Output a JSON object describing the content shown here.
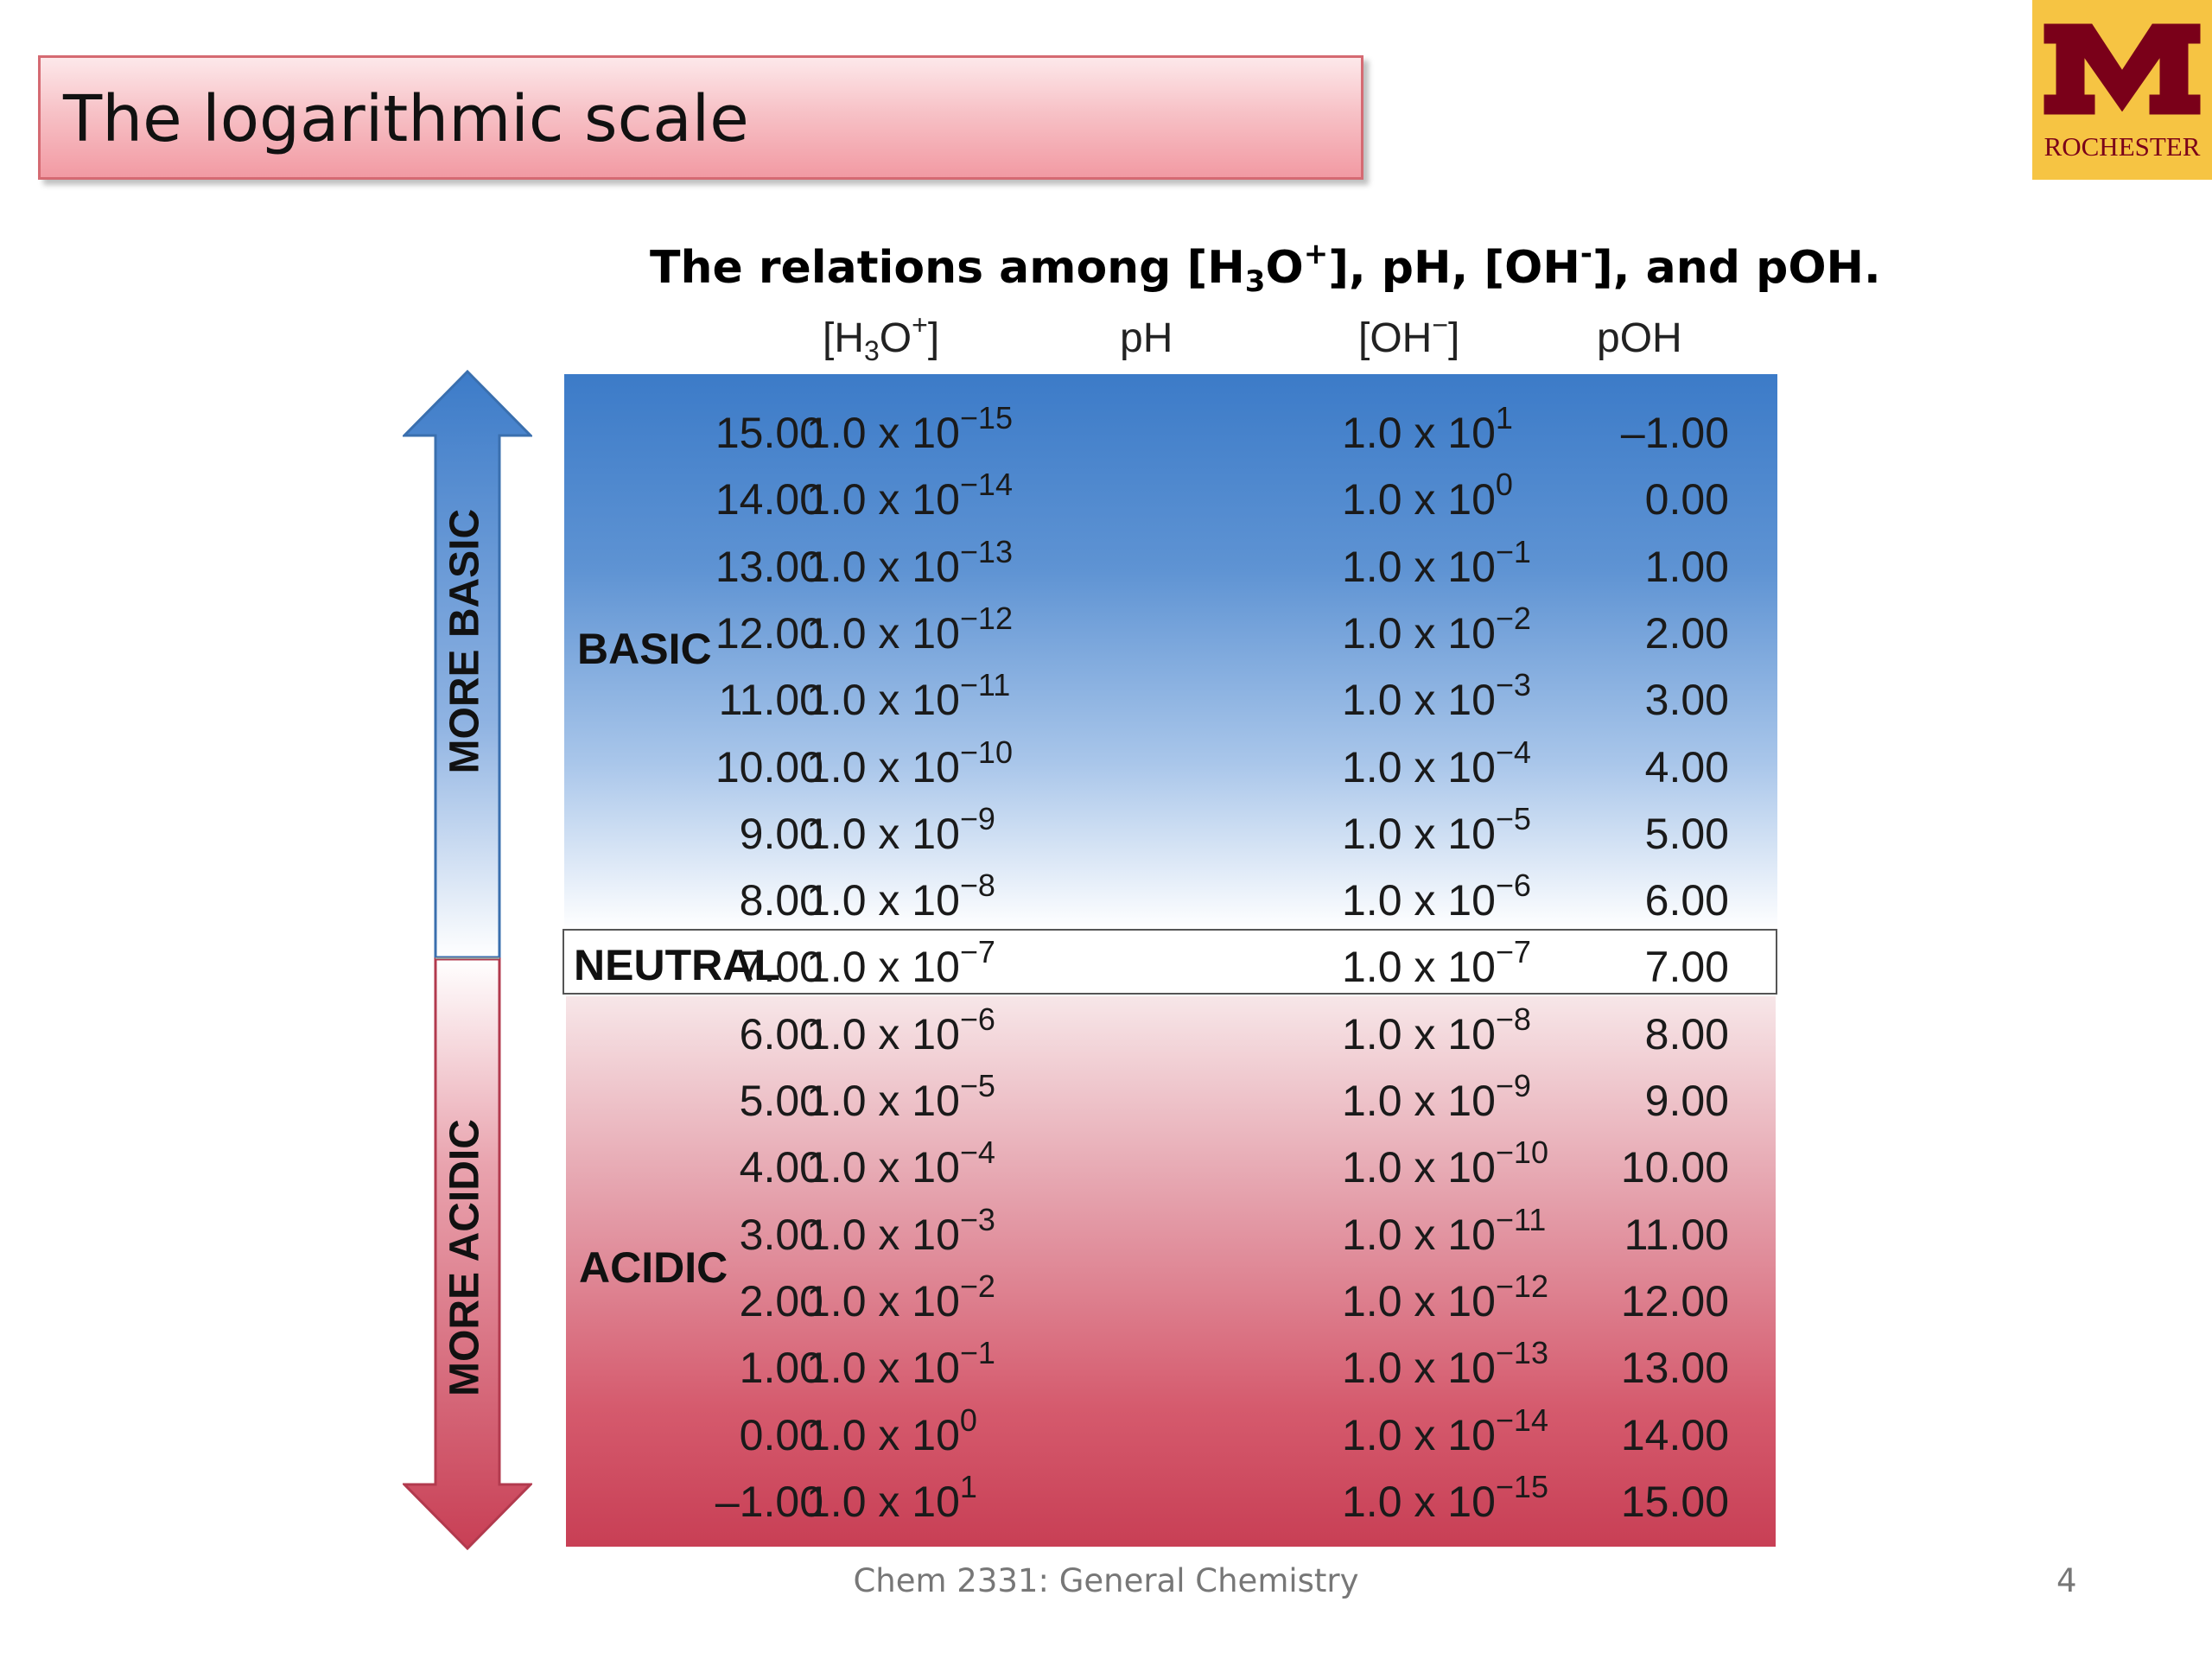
{
  "slide": {
    "title": "The logarithmic scale",
    "caption": {
      "pre": "The relations among [H",
      "sub": "3",
      "mid1": "O",
      "sup1": "+",
      "mid2": "], pH, [OH",
      "sup2": "-",
      "post": "], and pOH."
    },
    "footer": "Chem 2331: General Chemistry",
    "page_number": "4",
    "logo_text": "ROCHESTER"
  },
  "headers": {
    "h3o": {
      "open": "[H",
      "sub": "3",
      "mid": "O",
      "sup": "+",
      "close": "]"
    },
    "ph": "pH",
    "oh": {
      "open": "[OH",
      "sup": "−",
      "close": "]"
    },
    "poh": "pOH"
  },
  "labels": {
    "basic": "BASIC",
    "neutral": "NEUTRAL",
    "acidic": "ACIDIC",
    "more_basic": "MORE BASIC",
    "more_acidic": "MORE ACIDIC"
  },
  "colors": {
    "basic_top": "#3c7bc8",
    "acidic_bottom": "#c83f55",
    "logo_gold": "#f6c443",
    "logo_maroon": "#7a0019"
  },
  "rows": [
    {
      "h3o_exp": "−15",
      "ph": "15.00",
      "oh_exp": "1",
      "poh": "–1.00"
    },
    {
      "h3o_exp": "−14",
      "ph": "14.00",
      "oh_exp": "0",
      "poh": "0.00"
    },
    {
      "h3o_exp": "−13",
      "ph": "13.00",
      "oh_exp": "−1",
      "poh": "1.00"
    },
    {
      "h3o_exp": "−12",
      "ph": "12.00",
      "oh_exp": "−2",
      "poh": "2.00"
    },
    {
      "h3o_exp": "−11",
      "ph": "11.00",
      "oh_exp": "−3",
      "poh": "3.00"
    },
    {
      "h3o_exp": "−10",
      "ph": "10.00",
      "oh_exp": "−4",
      "poh": "4.00"
    },
    {
      "h3o_exp": "−9",
      "ph": "9.00",
      "oh_exp": "−5",
      "poh": "5.00"
    },
    {
      "h3o_exp": "−8",
      "ph": "8.00",
      "oh_exp": "−6",
      "poh": "6.00"
    },
    {
      "h3o_exp": "−7",
      "ph": "7.00",
      "oh_exp": "−7",
      "poh": "7.00"
    },
    {
      "h3o_exp": "−6",
      "ph": "6.00",
      "oh_exp": "−8",
      "poh": "8.00"
    },
    {
      "h3o_exp": "−5",
      "ph": "5.00",
      "oh_exp": "−9",
      "poh": "9.00"
    },
    {
      "h3o_exp": "−4",
      "ph": "4.00",
      "oh_exp": "−10",
      "poh": "10.00"
    },
    {
      "h3o_exp": "−3",
      "ph": "3.00",
      "oh_exp": "−11",
      "poh": "11.00"
    },
    {
      "h3o_exp": "−2",
      "ph": "2.00",
      "oh_exp": "−12",
      "poh": "12.00"
    },
    {
      "h3o_exp": "−1",
      "ph": "1.00",
      "oh_exp": "−13",
      "poh": "13.00"
    },
    {
      "h3o_exp": "0",
      "ph": "0.00",
      "oh_exp": "−14",
      "poh": "14.00"
    },
    {
      "h3o_exp": "1",
      "ph": "–1.00",
      "oh_exp": "−15",
      "poh": "15.00"
    }
  ],
  "mantissa": "1.0 x 10"
}
